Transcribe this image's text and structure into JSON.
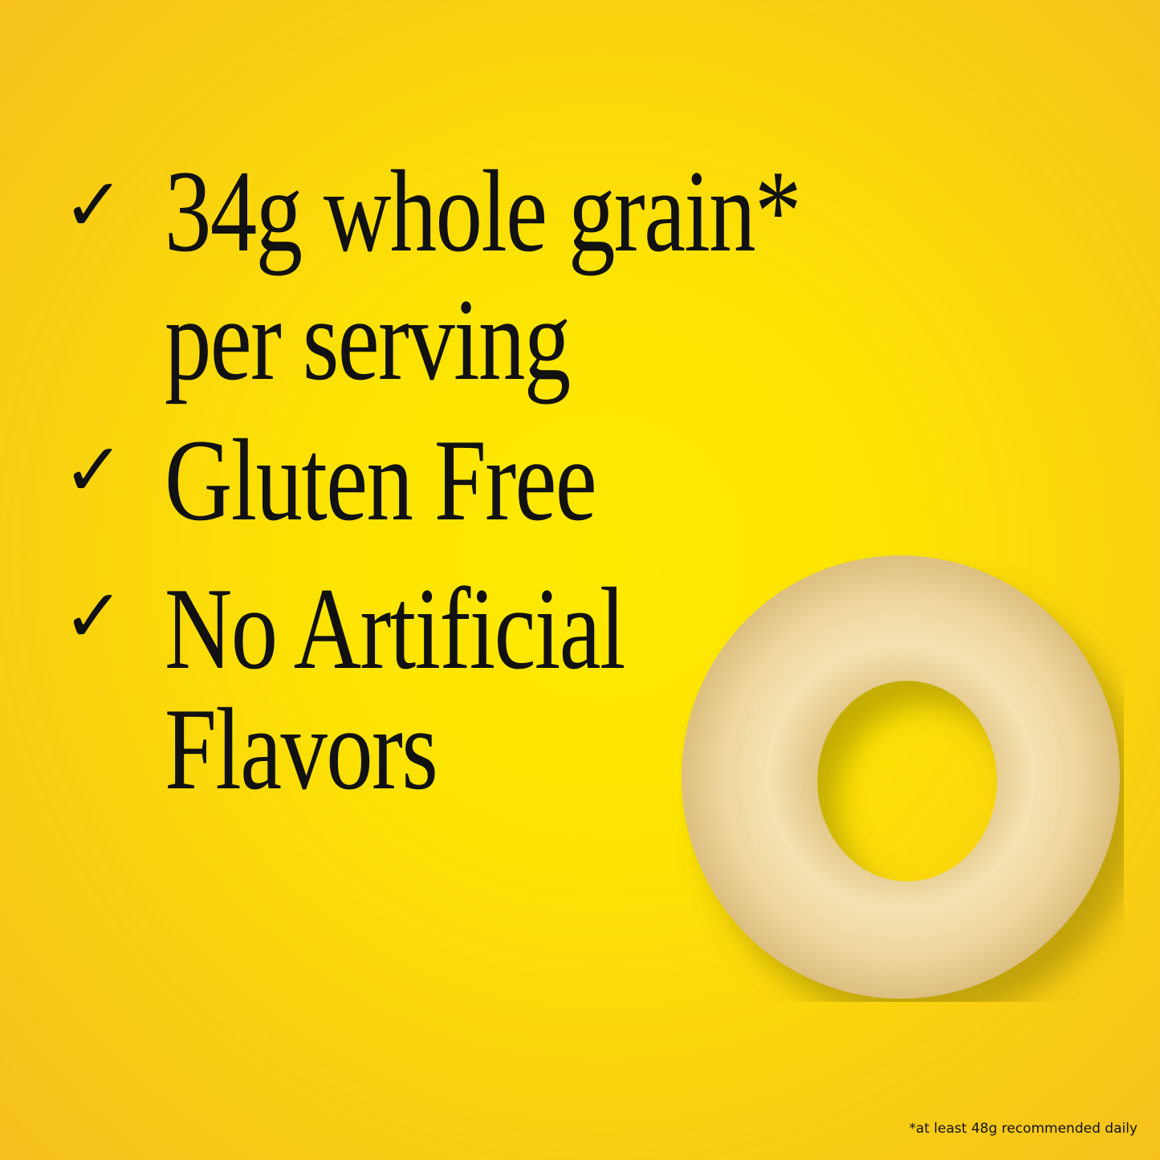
{
  "benefits": [
    {
      "icon": "checkmark-icon",
      "lines": [
        "34g whole grain*",
        "per serving"
      ]
    },
    {
      "icon": "checkmark-icon",
      "lines": [
        "Gluten Free"
      ]
    },
    {
      "icon": "checkmark-icon",
      "lines": [
        "No Artificial",
        "Flavors"
      ]
    }
  ],
  "footnote": "*at least 48g recommended daily",
  "colors": {
    "background": "#fde303",
    "text": "#111111"
  }
}
